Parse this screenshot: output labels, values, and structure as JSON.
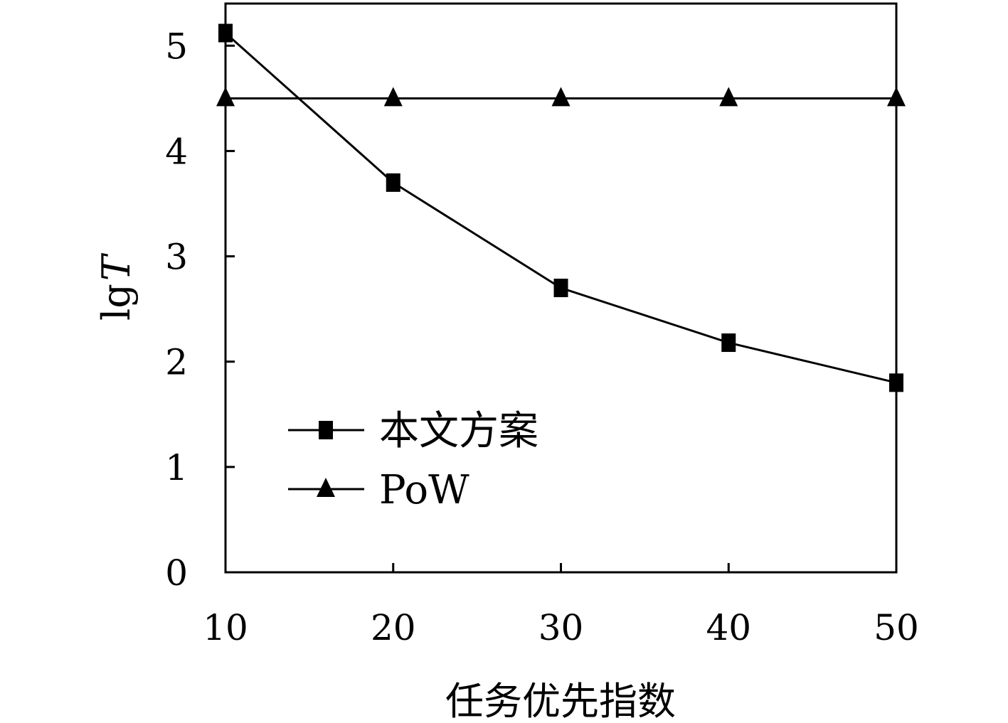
{
  "chart_data": {
    "type": "line",
    "xlabel": "任务优先指数",
    "ylabel_prefix": "lg",
    "ylabel_var": "T",
    "x": [
      10,
      20,
      30,
      40,
      50
    ],
    "xlim": [
      10,
      50
    ],
    "ylim": [
      0,
      5.4
    ],
    "x_ticks": [
      "10",
      "20",
      "30",
      "40",
      "50"
    ],
    "y_ticks": [
      0,
      1,
      2,
      3,
      4,
      5
    ],
    "y_tick_labels": [
      "0",
      "1",
      "2",
      "3",
      "4",
      "5"
    ],
    "grid": false,
    "legend_position": "bottom-left",
    "series": [
      {
        "name": "本文方案",
        "marker": "square",
        "color": "#000000",
        "values": [
          5.12,
          3.7,
          2.7,
          2.18,
          1.8
        ]
      },
      {
        "name": "PoW",
        "marker": "triangle",
        "color": "#000000",
        "values": [
          4.5,
          4.5,
          4.5,
          4.5,
          4.5
        ]
      }
    ]
  }
}
